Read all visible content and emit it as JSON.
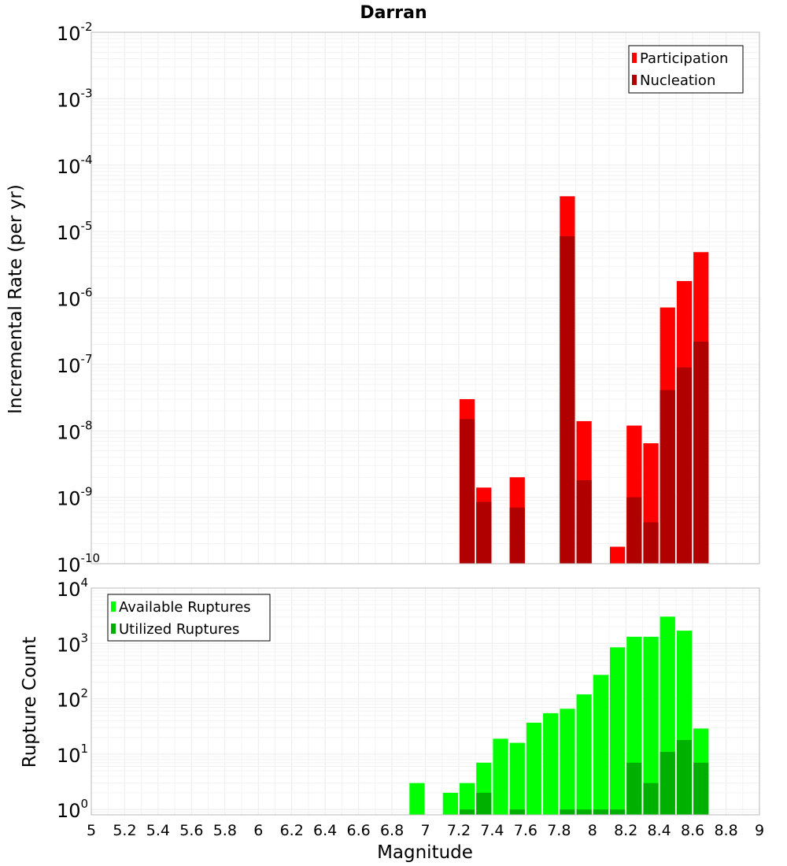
{
  "chart_data": [
    {
      "type": "bar",
      "title": "Darran",
      "xlabel": "",
      "ylabel": "Incremental Rate (per yr)",
      "yscale": "log",
      "ylim": [
        1e-10,
        0.01
      ],
      "xlim": [
        5,
        9
      ],
      "grid": true,
      "legend_position": "top-right",
      "y_ticks": [
        {
          "base": "10",
          "exp": "-10"
        },
        {
          "base": "10",
          "exp": "-9"
        },
        {
          "base": "10",
          "exp": "-8"
        },
        {
          "base": "10",
          "exp": "-7"
        },
        {
          "base": "10",
          "exp": "-6"
        },
        {
          "base": "10",
          "exp": "-5"
        },
        {
          "base": "10",
          "exp": "-4"
        },
        {
          "base": "10",
          "exp": "-3"
        },
        {
          "base": "10",
          "exp": "-2"
        }
      ],
      "series": [
        {
          "name": "Participation",
          "color": "#ff0000",
          "points": [
            {
              "x": 7.25,
              "y": 3e-08
            },
            {
              "x": 7.35,
              "y": 1.4e-09
            },
            {
              "x": 7.55,
              "y": 2e-09
            },
            {
              "x": 7.85,
              "y": 3.4e-05
            },
            {
              "x": 7.95,
              "y": 1.4e-08
            },
            {
              "x": 8.15,
              "y": 1.8e-10
            },
            {
              "x": 8.25,
              "y": 1.2e-08
            },
            {
              "x": 8.35,
              "y": 6.5e-09
            },
            {
              "x": 8.45,
              "y": 7.2e-07
            },
            {
              "x": 8.55,
              "y": 1.8e-06
            },
            {
              "x": 8.65,
              "y": 4.9e-06
            }
          ]
        },
        {
          "name": "Nucleation",
          "color": "#b00000",
          "points": [
            {
              "x": 7.25,
              "y": 1.5e-08
            },
            {
              "x": 7.35,
              "y": 8.5e-10
            },
            {
              "x": 7.55,
              "y": 7e-10
            },
            {
              "x": 7.85,
              "y": 8.5e-06
            },
            {
              "x": 7.95,
              "y": 1.8e-09
            },
            {
              "x": 8.25,
              "y": 1e-09
            },
            {
              "x": 8.35,
              "y": 4.2e-10
            },
            {
              "x": 8.45,
              "y": 4.1e-08
            },
            {
              "x": 8.55,
              "y": 9e-08
            },
            {
              "x": 8.65,
              "y": 2.2e-07
            }
          ]
        }
      ]
    },
    {
      "type": "bar",
      "title": "",
      "xlabel": "Magnitude",
      "ylabel": "Rupture Count",
      "yscale": "log",
      "ylim": [
        0.8,
        10000
      ],
      "xlim": [
        5,
        9
      ],
      "grid": true,
      "legend_position": "top-left",
      "x_ticks": [
        "5",
        "5.2",
        "5.4",
        "5.6",
        "5.8",
        "6",
        "6.2",
        "6.4",
        "6.6",
        "6.8",
        "7",
        "7.2",
        "7.4",
        "7.6",
        "7.8",
        "8",
        "8.2",
        "8.4",
        "8.6",
        "8.8",
        "9"
      ],
      "y_ticks": [
        {
          "base": "10",
          "exp": "0"
        },
        {
          "base": "10",
          "exp": "1"
        },
        {
          "base": "10",
          "exp": "2"
        },
        {
          "base": "10",
          "exp": "3"
        },
        {
          "base": "10",
          "exp": "4"
        }
      ],
      "series": [
        {
          "name": "Available Ruptures",
          "color": "#00ff00",
          "points": [
            {
              "x": 6.95,
              "y": 3
            },
            {
              "x": 7.15,
              "y": 2
            },
            {
              "x": 7.25,
              "y": 3
            },
            {
              "x": 7.35,
              "y": 7
            },
            {
              "x": 7.45,
              "y": 19
            },
            {
              "x": 7.55,
              "y": 16
            },
            {
              "x": 7.65,
              "y": 37
            },
            {
              "x": 7.75,
              "y": 55
            },
            {
              "x": 7.85,
              "y": 66
            },
            {
              "x": 7.95,
              "y": 120
            },
            {
              "x": 8.05,
              "y": 270
            },
            {
              "x": 8.15,
              "y": 850
            },
            {
              "x": 8.25,
              "y": 1320
            },
            {
              "x": 8.35,
              "y": 1320
            },
            {
              "x": 8.45,
              "y": 3050
            },
            {
              "x": 8.55,
              "y": 1700
            },
            {
              "x": 8.65,
              "y": 29
            }
          ]
        },
        {
          "name": "Utilized Ruptures",
          "color": "#00b000",
          "points": [
            {
              "x": 7.25,
              "y": 1
            },
            {
              "x": 7.35,
              "y": 2
            },
            {
              "x": 7.55,
              "y": 1
            },
            {
              "x": 7.85,
              "y": 1
            },
            {
              "x": 7.95,
              "y": 1
            },
            {
              "x": 8.05,
              "y": 1
            },
            {
              "x": 8.15,
              "y": 1
            },
            {
              "x": 8.25,
              "y": 7
            },
            {
              "x": 8.35,
              "y": 3
            },
            {
              "x": 8.45,
              "y": 11
            },
            {
              "x": 8.55,
              "y": 18
            },
            {
              "x": 8.65,
              "y": 7
            }
          ]
        }
      ]
    }
  ]
}
